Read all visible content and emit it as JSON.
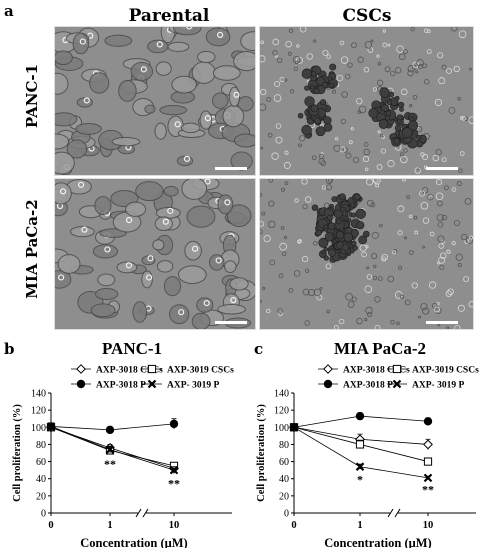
{
  "figure": {
    "panel_a": {
      "letter": "a",
      "col_headers": [
        "Parental",
        "CSCs"
      ],
      "row_headers": [
        "PANC-1",
        "MIA PaCa-2"
      ]
    },
    "panel_b": {
      "letter": "b"
    },
    "panel_c": {
      "letter": "c"
    }
  },
  "chart_data": [
    {
      "type": "line",
      "title": "PANC-1",
      "xlabel": "Concentration (μM)",
      "ylabel": "Cell proliferation (%)",
      "x_ticks": [
        "0",
        "1",
        "10"
      ],
      "y_ticks": [
        0,
        20,
        40,
        60,
        80,
        100,
        120,
        140
      ],
      "ylim": [
        0,
        140
      ],
      "legend_position": "top",
      "series": [
        {
          "name": "AXP-3018 CSCs",
          "marker": "diamond-open",
          "values": [
            100,
            76,
            52
          ],
          "err": [
            2,
            4,
            4
          ]
        },
        {
          "name": "AXP-3019 CSCs",
          "marker": "square-open",
          "values": [
            100,
            73,
            55
          ],
          "err": [
            2,
            4,
            4
          ]
        },
        {
          "name": "AXP-3018 P",
          "marker": "circle-filled",
          "values": [
            101,
            97,
            104
          ],
          "err": [
            2,
            3,
            6
          ]
        },
        {
          "name": "AXP- 3019 P",
          "marker": "x",
          "values": [
            101,
            74,
            50
          ],
          "err": [
            2,
            4,
            4
          ]
        }
      ],
      "annotations": [
        {
          "x": "1",
          "text": "**"
        },
        {
          "x": "10",
          "text": "**"
        }
      ]
    },
    {
      "type": "line",
      "title": "MIA PaCa-2",
      "xlabel": "Concentration (μM)",
      "ylabel": "Cell proliferation (%)",
      "x_ticks": [
        "0",
        "1",
        "10"
      ],
      "y_ticks": [
        0,
        20,
        40,
        60,
        80,
        100,
        120,
        140
      ],
      "ylim": [
        0,
        140
      ],
      "legend_position": "top",
      "series": [
        {
          "name": "AXP-3018 CSCs",
          "marker": "diamond-open",
          "values": [
            100,
            86,
            80
          ],
          "err": [
            3,
            6,
            6
          ]
        },
        {
          "name": "AXP-3019 CSCs",
          "marker": "square-open",
          "values": [
            100,
            80,
            60
          ],
          "err": [
            3,
            5,
            4
          ]
        },
        {
          "name": "AXP-3018 P",
          "marker": "circle-filled",
          "values": [
            100,
            113,
            107
          ],
          "err": [
            3,
            4,
            4
          ]
        },
        {
          "name": "AXP- 3019 P",
          "marker": "x",
          "values": [
            100,
            54,
            41
          ],
          "err": [
            3,
            3,
            2
          ]
        }
      ],
      "annotations": [
        {
          "x": "1",
          "text": "*"
        },
        {
          "x": "10",
          "text": "**"
        }
      ]
    }
  ]
}
